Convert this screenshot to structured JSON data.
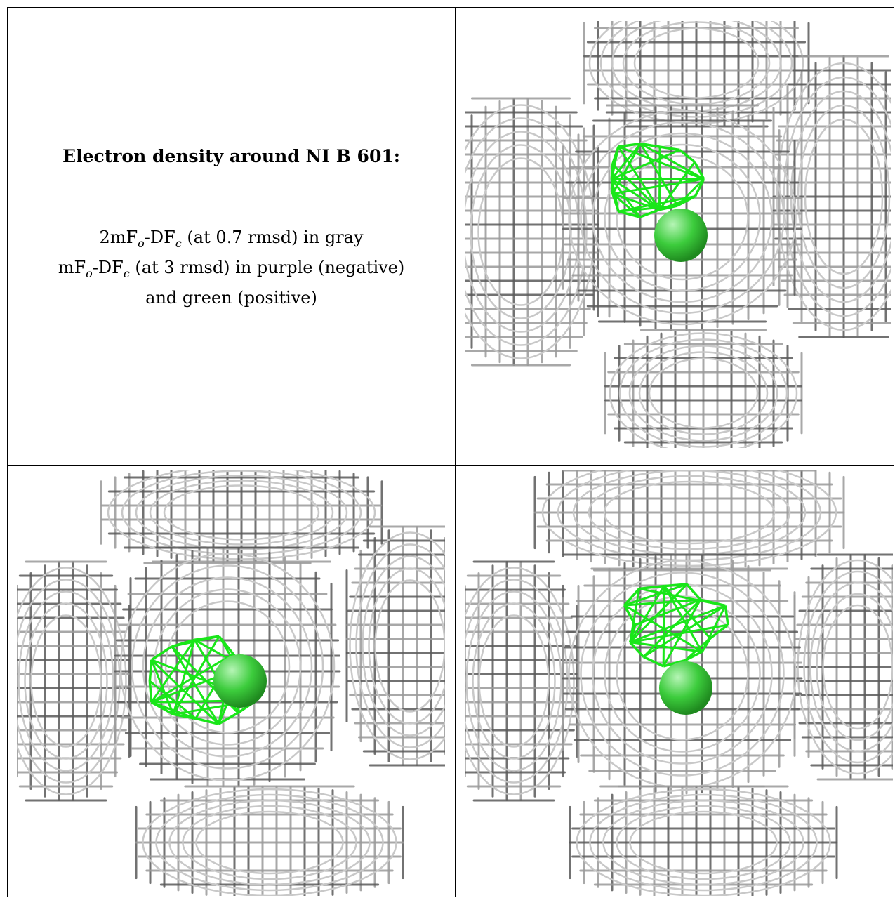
{
  "caption": {
    "title": "Electron density around NI B 601:",
    "line1": "2mFₒ-DF𝒸 (at 0.7 rmsd) in gray",
    "line1_parts": [
      "2mF",
      "o",
      "-DF",
      "c",
      " (at 0.7 rmsd) in gray"
    ],
    "line2_parts": [
      "mF",
      "o",
      "-DF",
      "c",
      " (at 3 rmsd) in purple (negative)"
    ],
    "line3": "and green (positive)"
  },
  "colors": {
    "mesh_gray": "#9a9a9a",
    "mesh_dark": "#5a5a5a",
    "mesh_green": "#19e619",
    "atom_green": "#3ccc3c",
    "border": "#000000",
    "background": "#ffffff"
  },
  "panels": [
    {
      "name": "view-1",
      "atom": "ni-atom",
      "map": "2mFo-DFc mesh",
      "diff_map": "positive difference density"
    },
    {
      "name": "view-2",
      "atom": "ni-atom",
      "map": "2mFo-DFc mesh",
      "diff_map": "positive difference density"
    },
    {
      "name": "view-3",
      "atom": "ni-atom",
      "map": "2mFo-DFc mesh",
      "diff_map": "positive difference density"
    }
  ]
}
